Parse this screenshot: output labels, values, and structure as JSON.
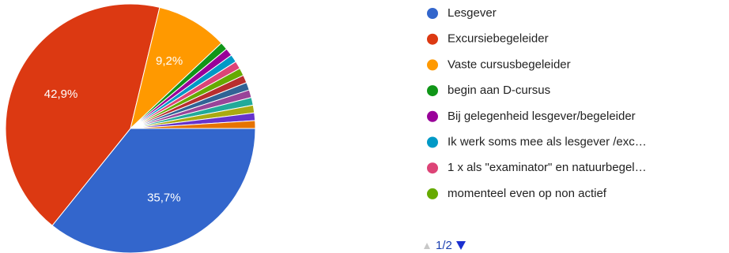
{
  "chart_data": {
    "type": "pie",
    "categories": [
      "Lesgever",
      "Excursiebegeleider",
      "Vaste cursusbegeleider",
      "begin aan D-cursus",
      "Bij gelegenheid lesgever/begeleider",
      "Ik werk soms mee als lesgever /exc…",
      "1 x als \"examinator\" en natuurbegel…",
      "momenteel even op non actief",
      null,
      null,
      null,
      null,
      null,
      null,
      null
    ],
    "values": [
      35.7,
      42.9,
      9.2,
      1.0,
      1.0,
      1.0,
      1.0,
      1.0,
      1.0,
      1.0,
      1.0,
      1.0,
      1.0,
      1.0,
      1.0
    ],
    "value_labels": [
      "35,7%",
      "42,9%",
      "9,2%",
      null,
      null,
      null,
      null,
      null,
      null,
      null,
      null,
      null,
      null,
      null,
      null
    ],
    "colors": [
      "#3366cc",
      "#dc3912",
      "#ff9900",
      "#109618",
      "#990099",
      "#0099c6",
      "#dd4477",
      "#66aa00",
      "#b82e2e",
      "#316395",
      "#994499",
      "#22aa99",
      "#aaaa11",
      "#6633cc",
      "#e67300"
    ],
    "legend_page": "1/2"
  }
}
